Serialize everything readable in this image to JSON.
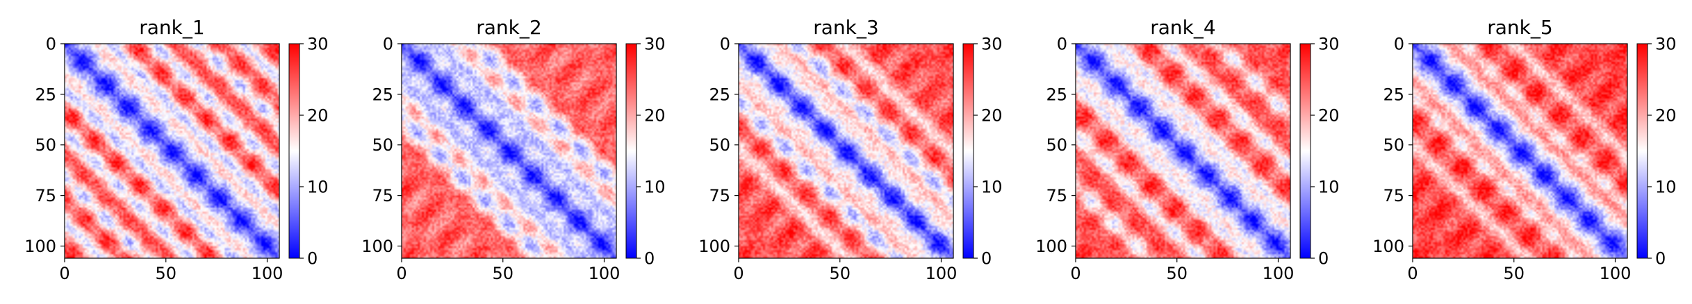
{
  "chart_data": [
    {
      "type": "heatmap",
      "title": "rank_1",
      "matrix_size": 106,
      "xlim": [
        0,
        105
      ],
      "ylim": [
        105,
        0
      ],
      "xticks": [
        0,
        50,
        100
      ],
      "yticks": [
        0,
        25,
        50,
        75,
        100
      ],
      "colorbar": {
        "colormap": "bwr",
        "range": [
          0,
          30
        ],
        "ticks": [
          0,
          10,
          20,
          30
        ],
        "colors": {
          "low": "#0000ff",
          "mid": "#ffffff",
          "high": "#ff0000"
        }
      },
      "pattern": {
        "diagonal_value": 2,
        "background_value": 25,
        "bands": [
          {
            "offset": 22,
            "value": 12,
            "width": 4,
            "period": 22
          },
          {
            "offset": 44,
            "value": 13,
            "width": 4,
            "period": 22
          },
          {
            "offset": 66,
            "value": 13,
            "width": 4,
            "period": 22
          },
          {
            "offset": 88,
            "value": 13,
            "width": 4,
            "period": 22
          }
        ]
      }
    },
    {
      "type": "heatmap",
      "title": "rank_2",
      "matrix_size": 106,
      "xlim": [
        0,
        105
      ],
      "ylim": [
        105,
        0
      ],
      "xticks": [
        0,
        50,
        100
      ],
      "yticks": [
        0,
        25,
        50,
        75,
        100
      ],
      "colorbar": {
        "colormap": "bwr",
        "range": [
          0,
          30
        ],
        "ticks": [
          0,
          10,
          20,
          30
        ],
        "colors": {
          "low": "#0000ff",
          "mid": "#ffffff",
          "high": "#ff0000"
        }
      },
      "pattern": {
        "diagonal_value": 2,
        "background_value": 24,
        "bands": [
          {
            "offset": 18,
            "value": 11,
            "width": 6,
            "period": 0
          },
          {
            "offset": 36,
            "value": 12,
            "width": 5,
            "period": 0
          }
        ]
      }
    },
    {
      "type": "heatmap",
      "title": "rank_3",
      "matrix_size": 106,
      "xlim": [
        0,
        105
      ],
      "ylim": [
        105,
        0
      ],
      "xticks": [
        0,
        50,
        100
      ],
      "yticks": [
        0,
        25,
        50,
        75,
        100
      ],
      "colorbar": {
        "colormap": "bwr",
        "range": [
          0,
          30
        ],
        "ticks": [
          0,
          10,
          20,
          30
        ],
        "colors": {
          "low": "#0000ff",
          "mid": "#ffffff",
          "high": "#ff0000"
        }
      },
      "pattern": {
        "diagonal_value": 2,
        "background_value": 25,
        "bands": [
          {
            "offset": 14,
            "value": 16,
            "width": 4,
            "period": 0
          },
          {
            "offset": 28,
            "value": 12,
            "width": 5,
            "period": 0
          },
          {
            "offset": 52,
            "value": 17,
            "width": 4,
            "period": 0
          }
        ]
      }
    },
    {
      "type": "heatmap",
      "title": "rank_4",
      "matrix_size": 106,
      "xlim": [
        0,
        105
      ],
      "ylim": [
        105,
        0
      ],
      "xticks": [
        0,
        50,
        100
      ],
      "yticks": [
        0,
        25,
        50,
        75,
        100
      ],
      "colorbar": {
        "colormap": "bwr",
        "range": [
          0,
          30
        ],
        "ticks": [
          0,
          10,
          20,
          30
        ],
        "colors": {
          "low": "#0000ff",
          "mid": "#ffffff",
          "high": "#ff0000"
        }
      },
      "pattern": {
        "diagonal_value": 2,
        "background_value": 25,
        "bands": [
          {
            "offset": 20,
            "value": 14,
            "width": 4,
            "period": 0
          },
          {
            "offset": 45,
            "value": 15,
            "width": 4,
            "period": 0
          },
          {
            "offset": 70,
            "value": 16,
            "width": 4,
            "period": 0
          }
        ]
      }
    },
    {
      "type": "heatmap",
      "title": "rank_5",
      "matrix_size": 106,
      "xlim": [
        0,
        105
      ],
      "ylim": [
        105,
        0
      ],
      "xticks": [
        0,
        50,
        100
      ],
      "yticks": [
        0,
        25,
        50,
        75,
        100
      ],
      "colorbar": {
        "colormap": "bwr",
        "range": [
          0,
          30
        ],
        "ticks": [
          0,
          10,
          20,
          30
        ],
        "colors": {
          "low": "#0000ff",
          "mid": "#ffffff",
          "high": "#ff0000"
        }
      },
      "pattern": {
        "diagonal_value": 2,
        "background_value": 26,
        "bands": [
          {
            "offset": 25,
            "value": 17,
            "width": 4,
            "period": 0
          },
          {
            "offset": 50,
            "value": 18,
            "width": 4,
            "period": 0
          }
        ]
      }
    }
  ]
}
